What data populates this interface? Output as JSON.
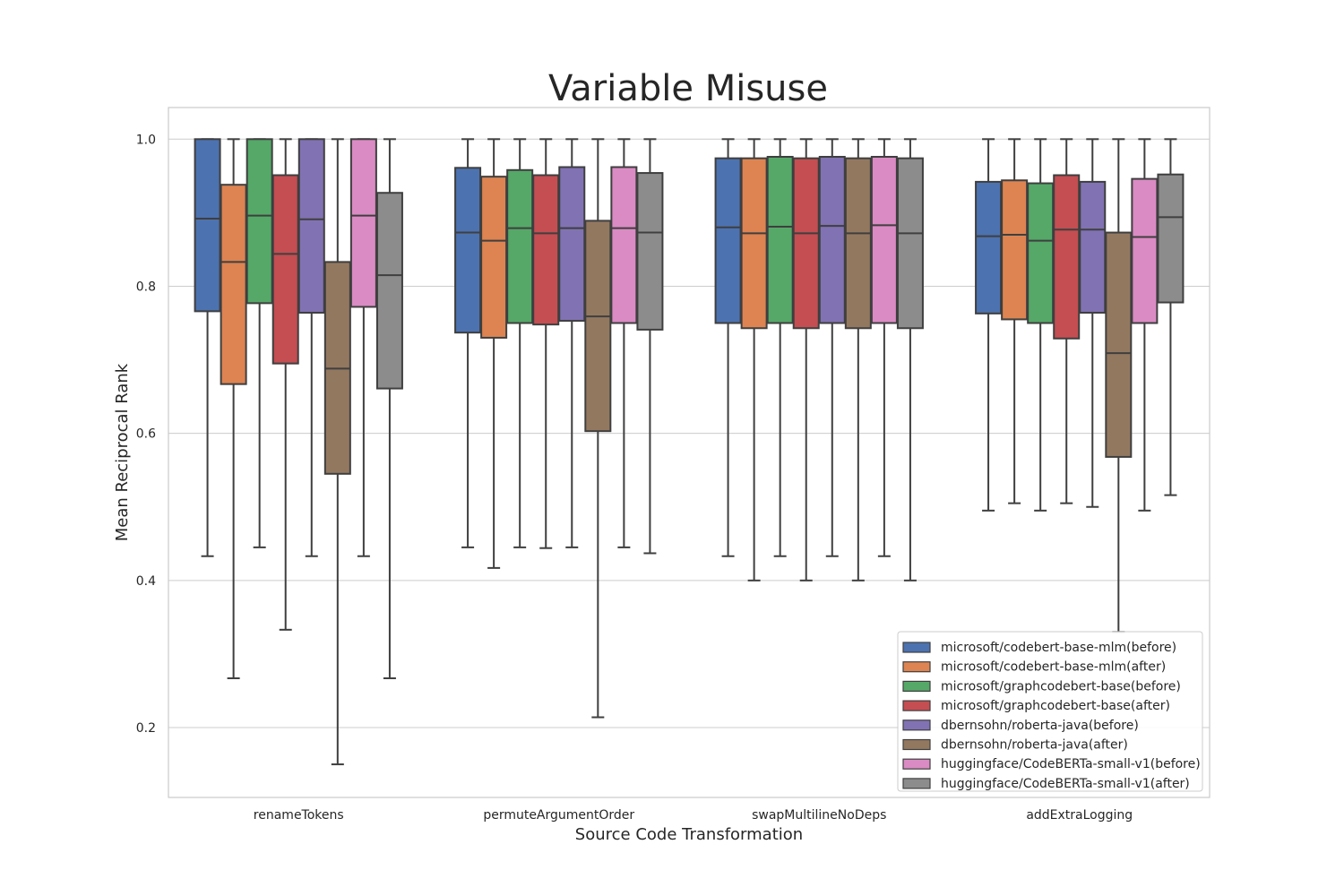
{
  "chart_data": {
    "type": "box",
    "title": "Variable Misuse",
    "xlabel": "Source Code Transformation",
    "ylabel": "Mean Reciprocal Rank",
    "ylim": [
      0.105,
      1.043
    ],
    "yticks": [
      0.2,
      0.4,
      0.6,
      0.8,
      1.0
    ],
    "ytick_labels": [
      "0.2",
      "0.4",
      "0.6",
      "0.8",
      "1.0"
    ],
    "grid": true,
    "legend_position": "lower-right",
    "categories": [
      "renameTokens",
      "permuteArgumentOrder",
      "swapMultilineNoDeps",
      "addExtraLogging"
    ],
    "series": [
      {
        "name": "microsoft/codebert-base-mlm(before)",
        "color": "#4c72b0",
        "boxes": [
          {
            "min": 0.433,
            "q1": 0.766,
            "median": 0.892,
            "q3": 1.0,
            "max": 1.0
          },
          {
            "min": 0.445,
            "q1": 0.737,
            "median": 0.873,
            "q3": 0.961,
            "max": 1.0
          },
          {
            "min": 0.433,
            "q1": 0.75,
            "median": 0.88,
            "q3": 0.974,
            "max": 1.0
          },
          {
            "min": 0.495,
            "q1": 0.763,
            "median": 0.868,
            "q3": 0.942,
            "max": 1.0
          }
        ]
      },
      {
        "name": "microsoft/codebert-base-mlm(after)",
        "color": "#dd8452",
        "boxes": [
          {
            "min": 0.267,
            "q1": 0.667,
            "median": 0.833,
            "q3": 0.938,
            "max": 1.0
          },
          {
            "min": 0.417,
            "q1": 0.73,
            "median": 0.862,
            "q3": 0.949,
            "max": 1.0
          },
          {
            "min": 0.4,
            "q1": 0.743,
            "median": 0.872,
            "q3": 0.974,
            "max": 1.0
          },
          {
            "min": 0.505,
            "q1": 0.755,
            "median": 0.87,
            "q3": 0.944,
            "max": 1.0
          }
        ]
      },
      {
        "name": "microsoft/graphcodebert-base(before)",
        "color": "#55a868",
        "boxes": [
          {
            "min": 0.445,
            "q1": 0.777,
            "median": 0.896,
            "q3": 1.0,
            "max": 1.0
          },
          {
            "min": 0.445,
            "q1": 0.75,
            "median": 0.879,
            "q3": 0.958,
            "max": 1.0
          },
          {
            "min": 0.433,
            "q1": 0.75,
            "median": 0.881,
            "q3": 0.976,
            "max": 1.0
          },
          {
            "min": 0.495,
            "q1": 0.75,
            "median": 0.862,
            "q3": 0.94,
            "max": 1.0
          }
        ]
      },
      {
        "name": "microsoft/graphcodebert-base(after)",
        "color": "#c44e52",
        "boxes": [
          {
            "min": 0.333,
            "q1": 0.695,
            "median": 0.844,
            "q3": 0.951,
            "max": 1.0
          },
          {
            "min": 0.444,
            "q1": 0.748,
            "median": 0.872,
            "q3": 0.951,
            "max": 1.0
          },
          {
            "min": 0.4,
            "q1": 0.743,
            "median": 0.872,
            "q3": 0.974,
            "max": 1.0
          },
          {
            "min": 0.505,
            "q1": 0.729,
            "median": 0.877,
            "q3": 0.951,
            "max": 1.0
          }
        ]
      },
      {
        "name": "dbernsohn/roberta-java(before)",
        "color": "#8172b3",
        "boxes": [
          {
            "min": 0.433,
            "q1": 0.764,
            "median": 0.891,
            "q3": 1.0,
            "max": 1.0
          },
          {
            "min": 0.445,
            "q1": 0.753,
            "median": 0.879,
            "q3": 0.962,
            "max": 1.0
          },
          {
            "min": 0.433,
            "q1": 0.75,
            "median": 0.882,
            "q3": 0.976,
            "max": 1.0
          },
          {
            "min": 0.5,
            "q1": 0.764,
            "median": 0.877,
            "q3": 0.942,
            "max": 1.0
          }
        ]
      },
      {
        "name": "dbernsohn/roberta-java(after)",
        "color": "#937860",
        "boxes": [
          {
            "min": 0.15,
            "q1": 0.545,
            "median": 0.688,
            "q3": 0.833,
            "max": 1.0
          },
          {
            "min": 0.214,
            "q1": 0.603,
            "median": 0.759,
            "q3": 0.889,
            "max": 1.0
          },
          {
            "min": 0.4,
            "q1": 0.743,
            "median": 0.872,
            "q3": 0.974,
            "max": 1.0
          },
          {
            "min": 0.33,
            "q1": 0.568,
            "median": 0.709,
            "q3": 0.873,
            "max": 1.0
          }
        ]
      },
      {
        "name": "huggingface/CodeBERTa-small-v1(before)",
        "color": "#da8bc3",
        "boxes": [
          {
            "min": 0.433,
            "q1": 0.772,
            "median": 0.896,
            "q3": 1.0,
            "max": 1.0
          },
          {
            "min": 0.445,
            "q1": 0.75,
            "median": 0.879,
            "q3": 0.962,
            "max": 1.0
          },
          {
            "min": 0.433,
            "q1": 0.75,
            "median": 0.883,
            "q3": 0.976,
            "max": 1.0
          },
          {
            "min": 0.495,
            "q1": 0.75,
            "median": 0.867,
            "q3": 0.946,
            "max": 1.0
          }
        ]
      },
      {
        "name": "huggingface/CodeBERTa-small-v1(after)",
        "color": "#8c8c8c",
        "boxes": [
          {
            "min": 0.267,
            "q1": 0.661,
            "median": 0.815,
            "q3": 0.927,
            "max": 1.0
          },
          {
            "min": 0.437,
            "q1": 0.741,
            "median": 0.873,
            "q3": 0.954,
            "max": 1.0
          },
          {
            "min": 0.4,
            "q1": 0.743,
            "median": 0.872,
            "q3": 0.974,
            "max": 1.0
          },
          {
            "min": 0.516,
            "q1": 0.778,
            "median": 0.894,
            "q3": 0.952,
            "max": 1.0
          }
        ]
      }
    ]
  }
}
